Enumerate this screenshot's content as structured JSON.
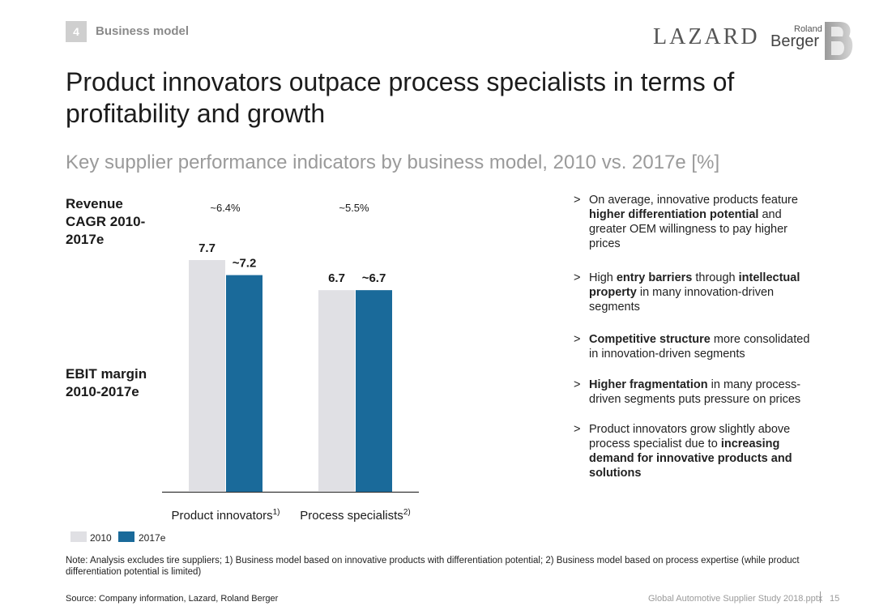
{
  "section": {
    "number": "4",
    "label": "Business model"
  },
  "logos": {
    "lazard": "LAZARD",
    "roland": "Roland",
    "berger": "Berger"
  },
  "title": "Product innovators outpace process specialists in terms of profitability and growth",
  "subtitle": "Key supplier performance indicators by business model, 2010 vs. 2017e [%]",
  "row_labels": {
    "revenue": "Revenue CAGR 2010-2017e",
    "ebit": "EBIT margin 2010-2017e"
  },
  "chart_data": {
    "type": "bar",
    "title": "",
    "categories": [
      "Product innovators",
      "Process specialists"
    ],
    "category_footnotes": [
      "1)",
      "2)"
    ],
    "series": [
      {
        "name": "2010",
        "values": [
          7.7,
          6.7
        ],
        "labels": [
          "7.7",
          "6.7"
        ],
        "color": "#e0e0e4"
      },
      {
        "name": "2017e",
        "values": [
          7.2,
          6.7
        ],
        "labels": [
          "~7.2",
          "~6.7"
        ],
        "color": "#1a6a9a"
      }
    ],
    "revenue_cagr": [
      "~6.4%",
      "~5.5%"
    ],
    "ylim": [
      0,
      7.7
    ],
    "xlabel": "",
    "ylabel": "",
    "legend": "bottom-left"
  },
  "bullets": [
    {
      "marker": ">",
      "html": "On average, innovative products feature <b>higher differentiation potential</b> and greater OEM willingness to pay higher prices"
    },
    {
      "marker": ">",
      "html": "High <b>entry barriers</b> through <b>intellectual property</b> in many innovation-driven segments"
    },
    {
      "marker": ">",
      "html": "<b>Competitive structure</b> more consolidated in innovation-driven segments"
    },
    {
      "marker": ">",
      "html": "<b>Higher fragmentation</b> in many process-driven segments puts pressure on prices"
    },
    {
      "marker": ">",
      "html": "Product innovators grow slightly above process specialist due to <b>increasing demand for innovative products and solutions</b>"
    }
  ],
  "note": "Note: Analysis excludes tire suppliers; 1) Business model based on innovative products with differentiation potential; 2) Business model based on process expertise (while product differentiation potential is limited)",
  "source": "Source: Company information, Lazard, Roland Berger",
  "footer": {
    "file": "Global Automotive Supplier Study 2018.pptx",
    "page": "15"
  }
}
